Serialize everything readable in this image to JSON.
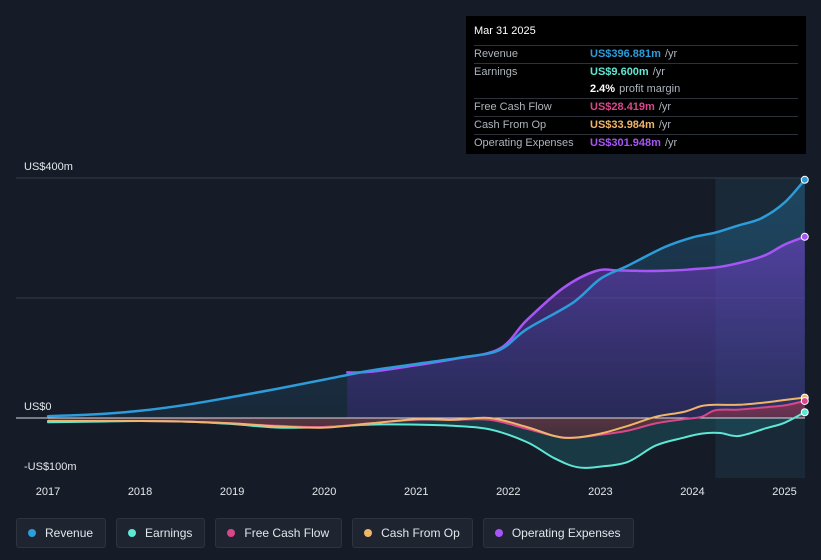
{
  "chart_data": {
    "type": "area",
    "title": "",
    "y_labels": {
      "top": "US$400m",
      "zero": "US$0",
      "bottom": "-US$100m"
    },
    "ylim": [
      -100,
      400
    ],
    "xlim": [
      2016.85,
      2025.25
    ],
    "x_ticks": [
      2017,
      2018,
      2019,
      2020,
      2021,
      2022,
      2023,
      2024,
      2025
    ],
    "x_tick_labels": [
      "2017",
      "2018",
      "2019",
      "2020",
      "2021",
      "2022",
      "2023",
      "2024",
      "2025"
    ],
    "forecast_shade_start": 2024.25,
    "series": [
      {
        "name": "Revenue",
        "color": "#2d9cdb",
        "x": [
          2017.0,
          2017.5,
          2018.0,
          2018.5,
          2019.0,
          2019.5,
          2020.0,
          2020.5,
          2021.0,
          2021.5,
          2021.9,
          2022.2,
          2022.7,
          2023.0,
          2023.3,
          2023.7,
          2024.0,
          2024.25,
          2024.5,
          2024.75,
          2025.0,
          2025.22
        ],
        "y": [
          3,
          6,
          12,
          22,
          35,
          49,
          64,
          79,
          90,
          101,
          113,
          148,
          192,
          232,
          254,
          285,
          301,
          309,
          321,
          333,
          359,
          397
        ]
      },
      {
        "name": "Operating Expenses",
        "color": "#a855f7",
        "x": [
          2020.25,
          2020.5,
          2021.0,
          2021.4,
          2021.9,
          2022.2,
          2022.6,
          2022.95,
          2023.2,
          2023.5,
          2023.8,
          2024.0,
          2024.3,
          2024.6,
          2024.8,
          2025.0,
          2025.22
        ],
        "y": [
          76,
          77,
          88,
          98,
          115,
          163,
          217,
          245,
          246,
          245,
          246,
          248,
          252,
          262,
          272,
          289,
          302
        ]
      },
      {
        "name": "Earnings",
        "color": "#5ee8d4",
        "x": [
          2017.0,
          2017.5,
          2018.0,
          2018.5,
          2019.0,
          2019.5,
          2020.0,
          2020.5,
          2021.0,
          2021.4,
          2021.8,
          2022.2,
          2022.5,
          2022.75,
          2023.0,
          2023.3,
          2023.6,
          2023.9,
          2024.1,
          2024.3,
          2024.5,
          2024.8,
          2025.0,
          2025.22
        ],
        "y": [
          -7,
          -6,
          -5,
          -6,
          -10,
          -16,
          -15,
          -11,
          -11,
          -13,
          -19,
          -40,
          -67,
          -82,
          -81,
          -73,
          -46,
          -33,
          -26,
          -25,
          -30,
          -17,
          -8,
          9.6
        ]
      },
      {
        "name": "Free Cash Flow",
        "color": "#d9478b",
        "x": [
          2017.0,
          2017.5,
          2018.0,
          2018.5,
          2019.0,
          2019.5,
          2020.0,
          2020.5,
          2021.0,
          2021.4,
          2021.8,
          2022.2,
          2022.5,
          2022.7,
          2023.0,
          2023.3,
          2023.6,
          2023.9,
          2024.1,
          2024.25,
          2024.5,
          2024.8,
          2025.0,
          2025.22
        ],
        "y": [
          -5,
          -5,
          -5,
          -6,
          -9,
          -13,
          -15,
          -9,
          -3,
          -3,
          -3,
          -18,
          -30,
          -33,
          -28,
          -21,
          -9,
          -2,
          2,
          13,
          14,
          18,
          21,
          28.4
        ]
      },
      {
        "name": "Cash From Op",
        "color": "#f0b56a",
        "x": [
          2017.0,
          2017.5,
          2018.0,
          2018.5,
          2019.0,
          2019.5,
          2020.0,
          2020.5,
          2021.0,
          2021.4,
          2021.8,
          2022.2,
          2022.5,
          2022.7,
          2023.0,
          2023.3,
          2023.6,
          2023.9,
          2024.1,
          2024.25,
          2024.5,
          2024.8,
          2025.0,
          2025.22
        ],
        "y": [
          -5,
          -5,
          -5,
          -6,
          -9,
          -14,
          -16,
          -9,
          -2,
          -3,
          0,
          -15,
          -30,
          -33,
          -26,
          -13,
          2,
          10,
          20,
          22,
          22,
          26,
          30,
          34
        ]
      }
    ]
  },
  "tooltip": {
    "date": "Mar 31 2025",
    "rows": [
      {
        "label": "Revenue",
        "value": "US$396.881m",
        "unit": "/yr",
        "color": "#2d9cdb"
      },
      {
        "label": "Earnings",
        "value": "US$9.600m",
        "unit": "/yr",
        "color": "#5ee8d4"
      },
      {
        "label": "",
        "value": "2.4%",
        "unit": "profit margin",
        "color": "#ffffff"
      },
      {
        "label": "Free Cash Flow",
        "value": "US$28.419m",
        "unit": "/yr",
        "color": "#d9478b"
      },
      {
        "label": "Cash From Op",
        "value": "US$33.984m",
        "unit": "/yr",
        "color": "#f0b56a"
      },
      {
        "label": "Operating Expenses",
        "value": "US$301.948m",
        "unit": "/yr",
        "color": "#a855f7"
      }
    ]
  },
  "legend": [
    {
      "label": "Revenue",
      "color": "#2d9cdb"
    },
    {
      "label": "Earnings",
      "color": "#5ee8d4"
    },
    {
      "label": "Free Cash Flow",
      "color": "#d9478b"
    },
    {
      "label": "Cash From Op",
      "color": "#f0b56a"
    },
    {
      "label": "Operating Expenses",
      "color": "#a855f7"
    }
  ]
}
